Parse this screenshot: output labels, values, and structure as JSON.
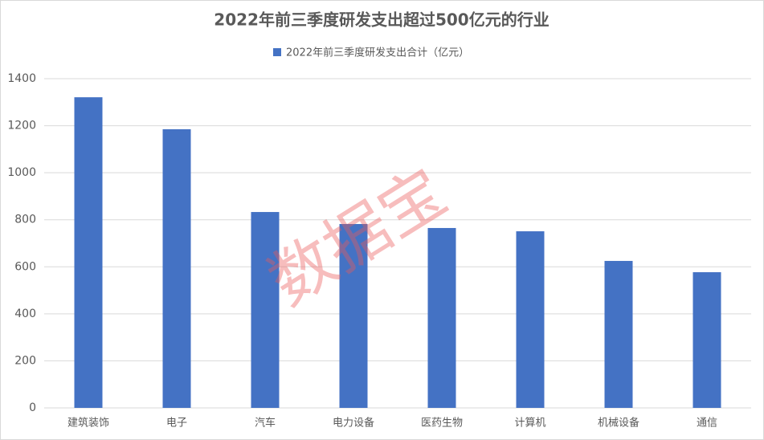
{
  "chart_data": {
    "type": "bar",
    "title": "2022年前三季度研发支出超过500亿元的行业",
    "categories": [
      "建筑装饰",
      "电子",
      "汽车",
      "电力设备",
      "医药生物",
      "计算机",
      "机械设备",
      "通信"
    ],
    "series": [
      {
        "name": "2022年前三季度研发支出合计（亿元）",
        "color": "#4472c4",
        "values": [
          1321,
          1185,
          833,
          782,
          765,
          751,
          625,
          577
        ]
      }
    ],
    "ylim": [
      0,
      1400
    ],
    "yticks": [
      0,
      200,
      400,
      600,
      800,
      1000,
      1200,
      1400
    ],
    "grid": true,
    "legend": "top",
    "watermark": "数据宝"
  }
}
